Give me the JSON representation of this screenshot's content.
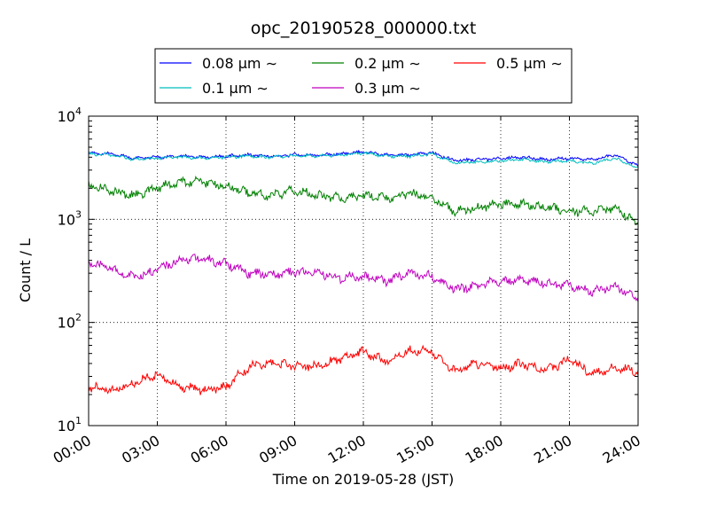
{
  "chart_data": {
    "type": "line",
    "title": "opc_20190528_000000.txt",
    "xlabel": "Time on 2019-05-28 (JST)",
    "ylabel": "Count / L",
    "x_unit": "hours",
    "xlim": [
      0,
      24
    ],
    "ylim": [
      10,
      10000
    ],
    "yscale": "log",
    "grid": true,
    "legend_position": "top-center",
    "x_tick_labels": [
      "00:00",
      "03:00",
      "06:00",
      "09:00",
      "12:00",
      "15:00",
      "18:00",
      "21:00",
      "24:00"
    ],
    "y_tick_labels": [
      {
        "base": "10",
        "exp": "1"
      },
      {
        "base": "10",
        "exp": "2"
      },
      {
        "base": "10",
        "exp": "3"
      },
      {
        "base": "10",
        "exp": "4"
      }
    ],
    "x": [
      0,
      1,
      2,
      3,
      4,
      5,
      6,
      7,
      8,
      9,
      10,
      11,
      12,
      13,
      14,
      15,
      16,
      17,
      18,
      19,
      20,
      21,
      22,
      23,
      24
    ],
    "series": [
      {
        "name": "0.08 μm ∼",
        "color": "#0000ff",
        "values": [
          4400,
          4300,
          3900,
          4000,
          4100,
          4000,
          4100,
          4200,
          4100,
          4200,
          4200,
          4300,
          4500,
          4200,
          4200,
          4400,
          3700,
          3800,
          3900,
          4000,
          3800,
          3900,
          3800,
          4200,
          3300
        ]
      },
      {
        "name": "0.1 μm ∼",
        "color": "#00bfbf",
        "values": [
          4300,
          4200,
          3800,
          3900,
          4000,
          3950,
          4000,
          4100,
          4000,
          4100,
          4100,
          4200,
          4400,
          4100,
          4100,
          4300,
          3500,
          3600,
          3700,
          3800,
          3600,
          3700,
          3500,
          3900,
          3100
        ]
      },
      {
        "name": "0.2 μm ∼",
        "color": "#008000",
        "values": [
          2100,
          1900,
          1700,
          2000,
          2300,
          2300,
          2100,
          1800,
          1700,
          1900,
          1700,
          1600,
          1700,
          1600,
          1800,
          1600,
          1200,
          1300,
          1400,
          1400,
          1300,
          1200,
          1200,
          1300,
          900
        ]
      },
      {
        "name": "0.3 μm ∼",
        "color": "#bf00bf",
        "values": [
          380,
          330,
          270,
          330,
          400,
          410,
          370,
          300,
          290,
          310,
          300,
          270,
          280,
          250,
          300,
          280,
          210,
          230,
          250,
          260,
          240,
          230,
          200,
          230,
          165
        ]
      },
      {
        "name": "0.5 μm ∼",
        "color": "#ff0000",
        "values": [
          24,
          22,
          26,
          32,
          24,
          22,
          24,
          37,
          40,
          38,
          38,
          44,
          52,
          42,
          54,
          52,
          34,
          40,
          36,
          40,
          34,
          44,
          32,
          36,
          34
        ]
      }
    ]
  }
}
